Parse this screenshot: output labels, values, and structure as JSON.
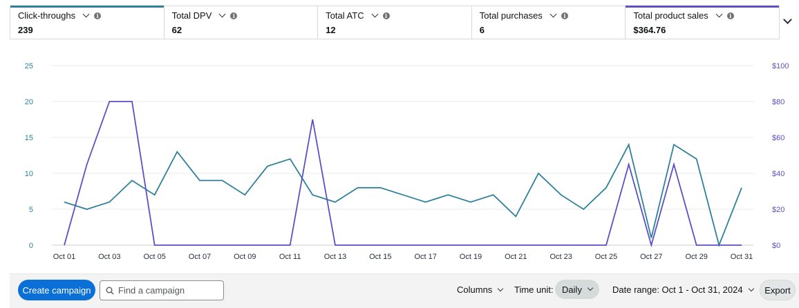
{
  "metrics": [
    {
      "label": "Click-throughs",
      "value": "239",
      "color": "#2e8099"
    },
    {
      "label": "Total DPV",
      "value": "62",
      "color": ""
    },
    {
      "label": "Total ATC",
      "value": "12",
      "color": ""
    },
    {
      "label": "Total purchases",
      "value": "6",
      "color": ""
    },
    {
      "label": "Total product sales",
      "value": "$364.76",
      "color": "#5a4fc4"
    }
  ],
  "chart_data": {
    "type": "line",
    "x": [
      "Oct 01",
      "Oct 02",
      "Oct 03",
      "Oct 04",
      "Oct 05",
      "Oct 06",
      "Oct 07",
      "Oct 08",
      "Oct 09",
      "Oct 10",
      "Oct 11",
      "Oct 12",
      "Oct 13",
      "Oct 14",
      "Oct 15",
      "Oct 16",
      "Oct 17",
      "Oct 18",
      "Oct 19",
      "Oct 20",
      "Oct 21",
      "Oct 22",
      "Oct 23",
      "Oct 24",
      "Oct 25",
      "Oct 26",
      "Oct 27",
      "Oct 28",
      "Oct 29",
      "Oct 30",
      "Oct 31"
    ],
    "x_tick_labels": [
      "Oct 01",
      "Oct 03",
      "Oct 05",
      "Oct 07",
      "Oct 09",
      "Oct 11",
      "Oct 13",
      "Oct 15",
      "Oct 17",
      "Oct 19",
      "Oct 21",
      "Oct 23",
      "Oct 25",
      "Oct 27",
      "Oct 29",
      "Oct 31"
    ],
    "y_left_ticks": [
      "0",
      "5",
      "10",
      "15",
      "20",
      "25"
    ],
    "y_left_range": [
      0,
      25
    ],
    "y_right_ticks": [
      "$0",
      "$20",
      "$40",
      "$60",
      "$80",
      "$100"
    ],
    "y_right_range": [
      0,
      100
    ],
    "grid": true,
    "series": [
      {
        "axis": "left",
        "color": "#2e8099",
        "values": [
          6,
          5,
          6,
          9,
          7,
          13,
          9,
          9,
          7,
          11,
          12,
          7,
          6,
          8,
          8,
          7,
          6,
          7,
          6,
          7,
          4,
          10,
          7,
          5,
          8,
          14,
          1,
          14,
          12,
          0,
          8
        ]
      },
      {
        "axis": "right",
        "color": "#5a4fc4",
        "values": [
          0,
          45,
          80,
          80,
          0,
          0,
          0,
          0,
          0,
          0,
          0,
          70,
          0,
          0,
          0,
          0,
          0,
          0,
          0,
          0,
          0,
          0,
          0,
          0,
          0,
          45,
          0,
          45,
          0,
          0,
          0
        ]
      }
    ]
  },
  "toolbar": {
    "create_label": "Create campaign",
    "search_placeholder": "Find a campaign",
    "columns_label": "Columns",
    "time_unit_label": "Time unit:",
    "time_unit_value": "Daily",
    "date_range_label": "Date range: Oct 1 - Oct 31, 2024",
    "export_label": "Export"
  },
  "icons": {
    "search": "search-icon",
    "chevron": "chevron-down-icon",
    "info": "info-icon"
  }
}
